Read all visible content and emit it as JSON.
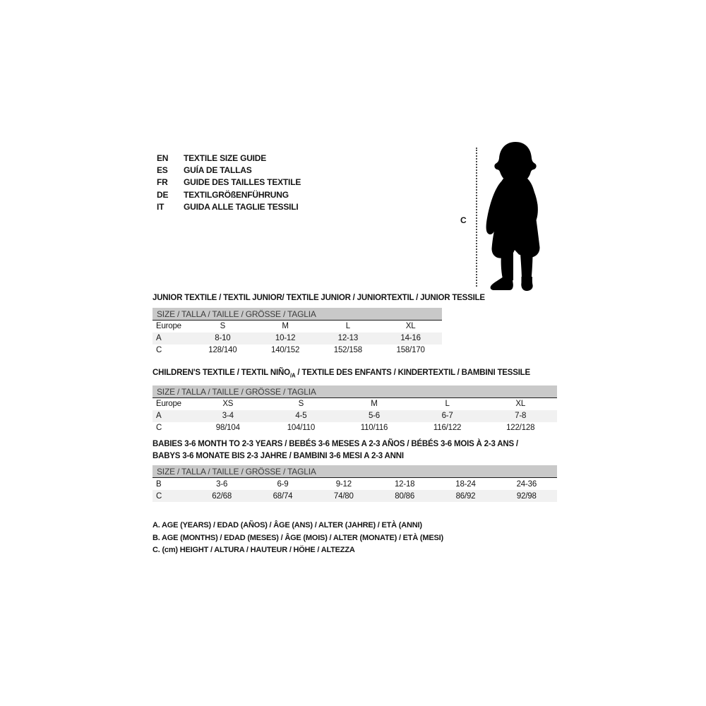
{
  "header": {
    "languages": [
      {
        "code": "EN",
        "label": "TEXTILE SIZE GUIDE"
      },
      {
        "code": "ES",
        "label": "GUÍA DE TALLAS"
      },
      {
        "code": "FR",
        "label": "GUIDE DES TAILLES TEXTILE"
      },
      {
        "code": "DE",
        "label": "TEXTILGRÖßENFÜHRUNG"
      },
      {
        "code": "IT",
        "label": "GUIDA ALLE TAGLIE TESSILI"
      }
    ]
  },
  "figure": {
    "icon": "child-silhouette-icon",
    "height_label": "C"
  },
  "size_row_label": "SIZE / TALLA / TAILLE / GRÖSSE / TAGLIA",
  "sections": [
    {
      "title": "JUNIOR TEXTILE / TEXTIL JUNIOR/ TEXTILE JUNIOR / JUNIORTEXTIL / JUNIOR TESSILE",
      "rows": [
        {
          "label": "Europe",
          "values": [
            "S",
            "M",
            "L",
            "XL"
          ]
        },
        {
          "label": "A",
          "values": [
            "8-10",
            "10-12",
            "12-13",
            "14-16"
          ]
        },
        {
          "label": "C",
          "values": [
            "128/140",
            "140/152",
            "152/158",
            "158/170"
          ]
        }
      ]
    },
    {
      "title_pre": "CHILDREN'S TEXTILE / TEXTIL NIÑO",
      "title_sub": "/A",
      "title_post": " / TEXTILE DES ENFANTS / KINDERTEXTIL / BAMBINI TESSILE",
      "rows": [
        {
          "label": "Europe",
          "values": [
            "XS",
            "S",
            "M",
            "L",
            "XL"
          ]
        },
        {
          "label": "A",
          "values": [
            "3-4",
            "4-5",
            "5-6",
            "6-7",
            "7-8"
          ]
        },
        {
          "label": "C",
          "values": [
            "98/104",
            "104/110",
            "110/116",
            "116/122",
            "122/128"
          ]
        }
      ]
    },
    {
      "title_line1": "BABIES 3-6 MONTH TO 2-3 YEARS / BEBÉS 3-6 MESES A 2-3 AÑOS / BÉBÉS 3-6 MOIS À 2-3 ANS /",
      "title_line2": "BABYS 3-6 MONATE BIS 2-3 JAHRE / BAMBINI 3-6 MESI A 2-3 ANNI",
      "rows": [
        {
          "label": "B",
          "values": [
            "3-6",
            "6-9",
            "9-12",
            "12-18",
            "18-24",
            "24-36"
          ]
        },
        {
          "label": "C",
          "values": [
            "62/68",
            "68/74",
            "74/80",
            "80/86",
            "86/92",
            "92/98"
          ]
        }
      ]
    }
  ],
  "legend": {
    "lines": [
      "A. AGE (YEARS) / EDAD (AÑOS) / ÂGE (ANS) / ALTER (JAHRE) / ETÀ (ANNI)",
      "B. AGE (MONTHS) / EDAD (MESES) / ÂGE (MOIS) / ALTER (MONATE) / ETÀ (MESI)",
      "C. (cm) HEIGHT / ALTURA / HAUTEUR / HÖHE / ALTEZZA"
    ]
  },
  "colors": {
    "size_bar_bg": "#c9c9c9",
    "stripe_bg": "#f1f1f1",
    "text": "#151515"
  }
}
